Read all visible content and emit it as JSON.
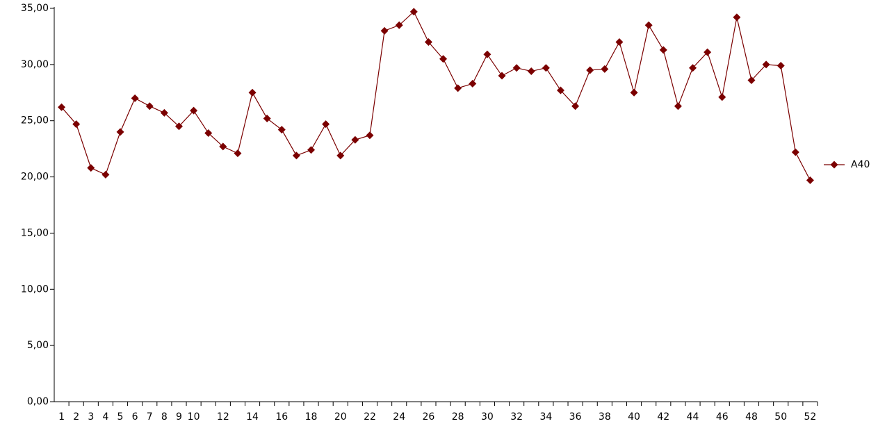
{
  "chart_data": {
    "type": "line",
    "categories": [
      "1",
      "2",
      "3",
      "4",
      "5",
      "6",
      "7",
      "8",
      "9",
      "10",
      null,
      "12",
      null,
      "14",
      null,
      "16",
      null,
      "18",
      null,
      "20",
      null,
      "22",
      null,
      "24",
      null,
      "26",
      null,
      "28",
      null,
      "30",
      null,
      "32",
      null,
      "34",
      null,
      "36",
      null,
      "38",
      null,
      "40",
      null,
      "42",
      null,
      "44",
      null,
      "46",
      null,
      "48",
      null,
      "50",
      null,
      "52"
    ],
    "series": [
      {
        "name": "A40",
        "color": "#7b0000",
        "values": [
          26.2,
          24.7,
          20.8,
          20.2,
          24.0,
          27.0,
          26.3,
          25.7,
          24.5,
          25.9,
          23.9,
          22.7,
          22.1,
          27.5,
          25.2,
          24.2,
          21.9,
          22.4,
          24.7,
          21.9,
          23.3,
          23.7,
          33.0,
          33.5,
          34.7,
          32.0,
          30.5,
          27.9,
          28.3,
          30.9,
          29.0,
          29.7,
          29.4,
          29.7,
          27.7,
          26.3,
          29.5,
          29.6,
          32.0,
          27.5,
          33.5,
          31.3,
          26.3,
          29.7,
          31.1,
          27.1,
          34.2,
          28.6,
          30.0,
          29.9,
          22.2,
          19.7
        ]
      }
    ],
    "ylim": [
      0,
      35
    ],
    "yticks": [
      {
        "value": 0,
        "label": "0,00"
      },
      {
        "value": 5,
        "label": "5,00"
      },
      {
        "value": 10,
        "label": "10,00"
      },
      {
        "value": 15,
        "label": "15,00"
      },
      {
        "value": 20,
        "label": "20,00"
      },
      {
        "value": 25,
        "label": "25,00"
      },
      {
        "value": 30,
        "label": "30,00"
      },
      {
        "value": 35,
        "label": "35,00"
      }
    ],
    "grid": false,
    "legend": "right"
  }
}
